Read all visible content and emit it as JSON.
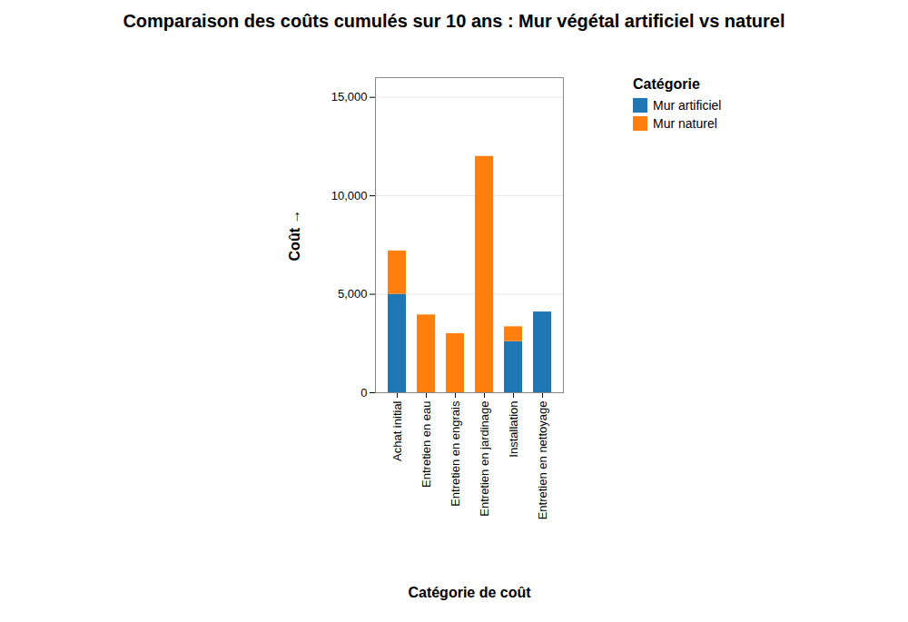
{
  "chart_data": {
    "type": "bar",
    "stacked": true,
    "title": "Comparaison des coûts cumulés sur 10 ans : Mur végétal artificiel vs naturel",
    "x_label": "Catégorie de coût",
    "y_label": "Coût",
    "legend_title": "Catégorie",
    "legend": "right",
    "categories": [
      "Achat initial",
      "Entretien en eau",
      "Entretien en engrais",
      "Entretien en jardinage",
      "Installation",
      "Entretien en nettoyage"
    ],
    "series": [
      {
        "name": "Mur artificiel",
        "color": "#1f77b4",
        "values": [
          5000,
          null,
          null,
          null,
          2600,
          4100
        ]
      },
      {
        "name": "Mur naturel",
        "color": "#ff7f0e",
        "values": [
          2200,
          3950,
          3000,
          12000,
          750,
          null
        ]
      }
    ],
    "ylim": [
      0,
      16000
    ],
    "yticks": [
      0,
      {
        "value": 5000,
        "label": "5,000"
      },
      {
        "value": 10000,
        "label": "10,000"
      },
      {
        "value": 15000,
        "label": "15,000"
      }
    ],
    "grid": true
  }
}
